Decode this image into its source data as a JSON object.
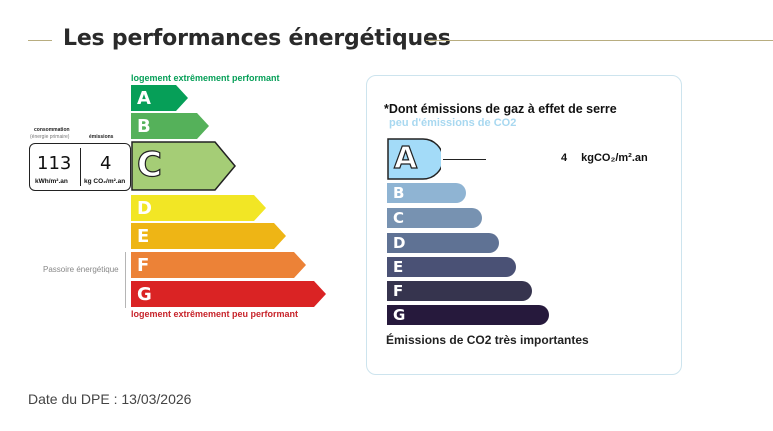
{
  "section": {
    "title": "Les performances énergétiques"
  },
  "dpe": {
    "top_caption": "logement extrêmement performant",
    "bottom_caption": "logement extrêmement peu performant",
    "passoire_label": "Passoire énergétique",
    "current_class": "C",
    "classes": [
      {
        "letter": "A",
        "color": "#069f58"
      },
      {
        "letter": "B",
        "color": "#55b15a"
      },
      {
        "letter": "C",
        "color": "#a5cd76"
      },
      {
        "letter": "D",
        "color": "#f2e625"
      },
      {
        "letter": "E",
        "color": "#eeb515"
      },
      {
        "letter": "F",
        "color": "#ec8237"
      },
      {
        "letter": "G",
        "color": "#da2324"
      }
    ],
    "top_caption_color": "#069f58",
    "bottom_caption_color": "#c7232a",
    "consumption": {
      "label": "consommation",
      "sublabel": "(énergie primaire)",
      "value": "113",
      "unit": "kWh/m².an"
    },
    "emissions": {
      "label": "émissions",
      "value": "4",
      "unit": "kg CO₂/m².an"
    }
  },
  "ges": {
    "title": "*Dont émissions de gaz à effet de serre",
    "top_caption": "peu d'émissions de CO2",
    "bottom_caption": "Émissions de CO2 très importantes",
    "current_class": "A",
    "value": "4",
    "unit": "kgCO₂/m².an",
    "classes": [
      {
        "letter": "A",
        "color": "#a3dbf8"
      },
      {
        "letter": "B",
        "color": "#8fb4d3"
      },
      {
        "letter": "C",
        "color": "#7792b1"
      },
      {
        "letter": "D",
        "color": "#5f7294"
      },
      {
        "letter": "E",
        "color": "#4a5175"
      },
      {
        "letter": "F",
        "color": "#36344e"
      },
      {
        "letter": "G",
        "color": "#26193c"
      }
    ]
  },
  "footer": {
    "date_text": "Date du DPE : 13/03/2026"
  }
}
